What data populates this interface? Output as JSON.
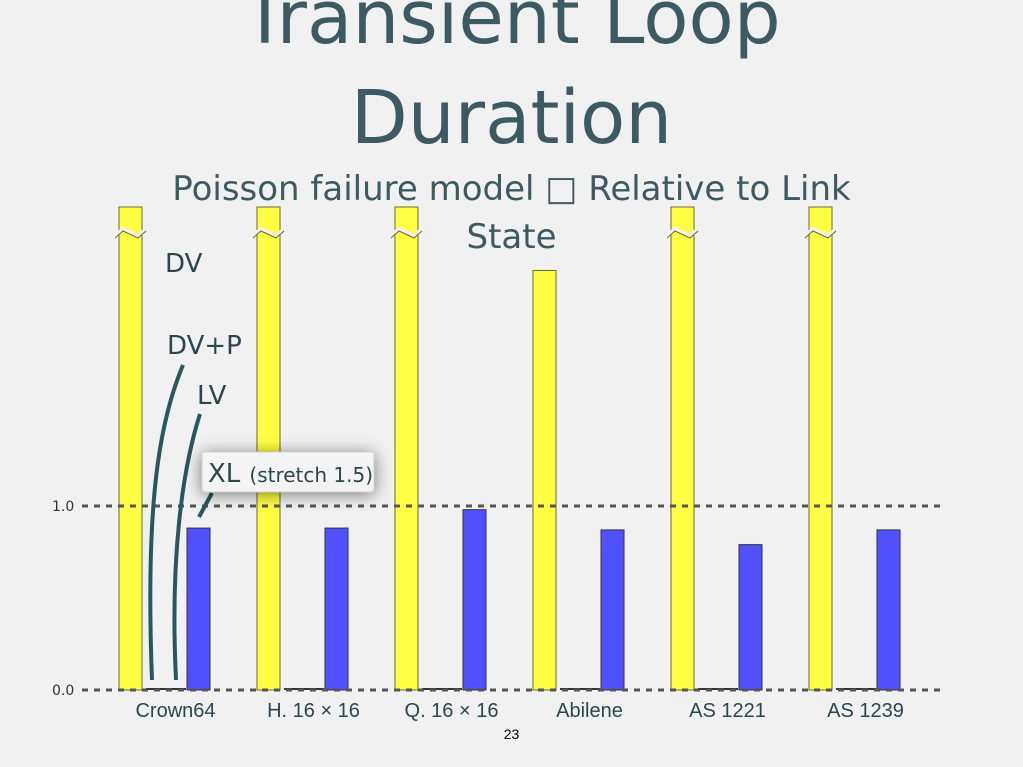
{
  "slide": {
    "title_line1": "Transient Loop",
    "title_line2": "Duration",
    "subtitle": "Poisson failure model □ Relative to Link State",
    "page_number": "23"
  },
  "colors": {
    "dv": "#ffff44",
    "xl": "#5050ff",
    "text": "#3d5a63"
  },
  "chart_data": {
    "type": "bar",
    "categories": [
      "Crown64",
      "H. 16 × 16",
      "Q. 16 × 16",
      "Abilene",
      "AS 1221",
      "AS 1239"
    ],
    "series": [
      {
        "name": "DV",
        "values": [
          null,
          null,
          null,
          2.28,
          null,
          null
        ],
        "truncated": [
          true,
          true,
          true,
          false,
          true,
          true
        ]
      },
      {
        "name": "DV+P",
        "values": [
          0,
          0,
          0,
          0,
          0,
          0
        ]
      },
      {
        "name": "LV",
        "values": [
          0,
          0,
          0,
          0,
          0,
          0
        ]
      },
      {
        "name": "XL (stretch 1.5)",
        "values": [
          0.88,
          0.88,
          0.98,
          0.87,
          0.79,
          0.87
        ]
      }
    ],
    "y_ticks": [
      "0.0",
      "1.0"
    ],
    "reference_lines": [
      0.0,
      1.0
    ],
    "ylim": [
      0,
      2.6
    ],
    "legend_labels": {
      "dv": "DV",
      "dvp": "DV+P",
      "lv": "LV",
      "xl": "XL",
      "xl_note": "(stretch 1.5)"
    }
  }
}
